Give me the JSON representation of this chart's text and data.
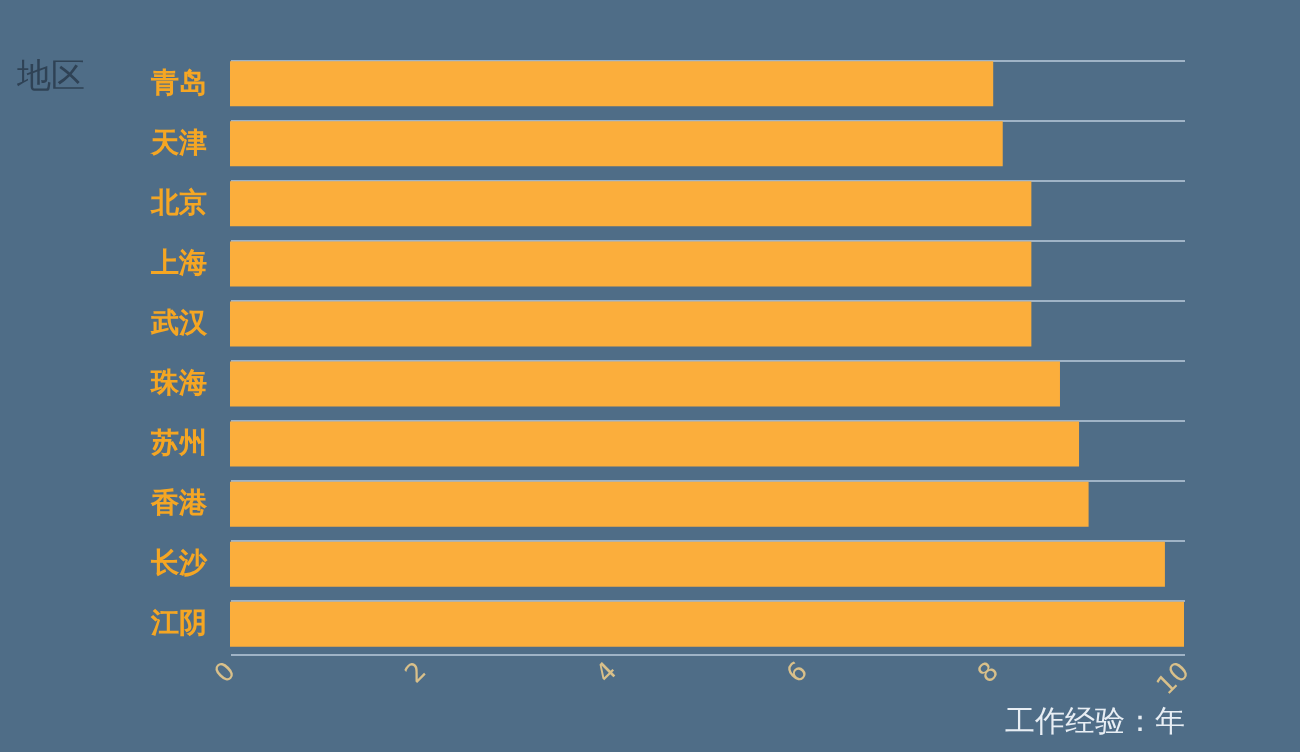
{
  "chart_data": {
    "type": "bar",
    "orientation": "horizontal",
    "xlabel": "工作经验：年",
    "ylabel": "地区",
    "categories": [
      "青岛",
      "天津",
      "北京",
      "上海",
      "武汉",
      "珠海",
      "苏州",
      "香港",
      "长沙",
      "江阴"
    ],
    "values": [
      8.0,
      8.1,
      8.4,
      8.4,
      8.4,
      8.7,
      8.9,
      9.0,
      9.8,
      10
    ],
    "color": "#fbae3c",
    "xlim": [
      0,
      10
    ],
    "xticks": [
      0,
      2,
      4,
      6,
      8,
      10
    ],
    "grid": "y"
  }
}
